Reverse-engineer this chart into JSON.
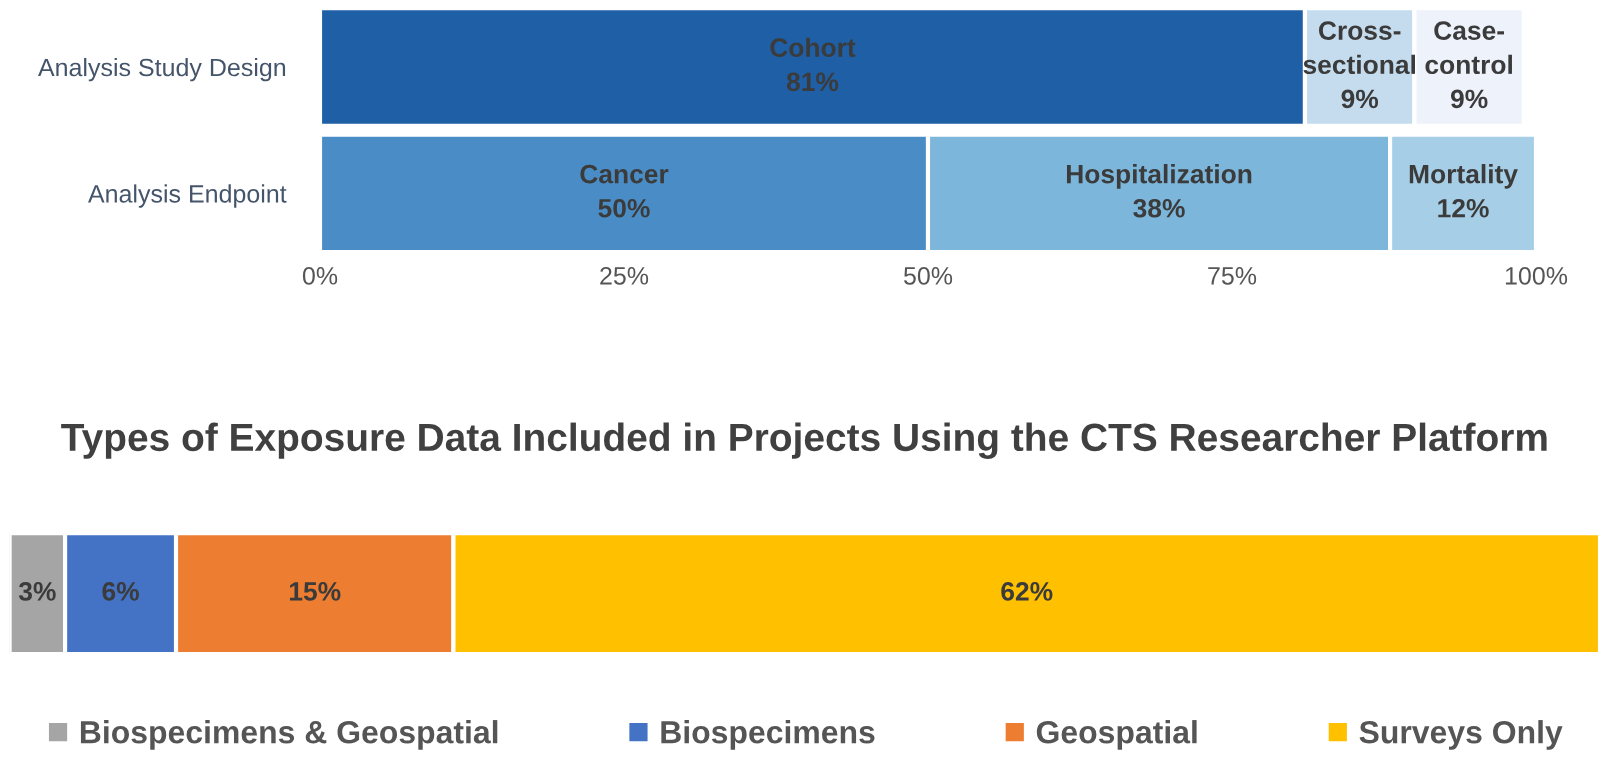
{
  "chart_data": [
    {
      "type": "bar",
      "orientation": "horizontal",
      "stacked": true,
      "categories": [
        "Analysis Study Design",
        "Analysis Endpoint"
      ],
      "xlim": [
        0,
        100
      ],
      "xticks": [
        {
          "value": 0,
          "label": "0%"
        },
        {
          "value": 25,
          "label": "25%"
        },
        {
          "value": 50,
          "label": "50%"
        },
        {
          "value": 75,
          "label": "75%"
        },
        {
          "value": 100,
          "label": "100%"
        }
      ],
      "legend": false,
      "grid": false,
      "series": [
        {
          "colors": [
            "#1f5fa5",
            "#4a8dc6"
          ],
          "values": [
            81,
            50
          ],
          "value_labels": [
            "Cohort\n81%",
            "Cancer\n50%"
          ]
        },
        {
          "colors": [
            "#c5dcee",
            "#7cb6db"
          ],
          "values": [
            9,
            38
          ],
          "value_labels": [
            "Cross-\nsectional\n9%",
            "Hospitalization\n38%"
          ]
        },
        {
          "colors": [
            "#eef2fb",
            "#a6cee6"
          ],
          "values": [
            9,
            12
          ],
          "value_labels": [
            "Case-\ncontrol\n9%",
            "Mortality\n12%"
          ]
        }
      ]
    },
    {
      "type": "bar",
      "orientation": "horizontal",
      "stacked": true,
      "title": "Types of Exposure Data Included in Projects Using the CTS Researcher Platform",
      "categories": [
        null
      ],
      "legend": "bottom",
      "grid": false,
      "tick_labels": false,
      "series": [
        {
          "name": "Biospecimens & Geospatial",
          "color": "#a5a5a5",
          "values": [
            3
          ],
          "value_labels": [
            "3%"
          ]
        },
        {
          "name": "Biospecimens",
          "color": "#4472c4",
          "values": [
            6
          ],
          "value_labels": [
            "6%"
          ]
        },
        {
          "name": "Geospatial",
          "color": "#ed7d31",
          "values": [
            15
          ],
          "value_labels": [
            "15%"
          ]
        },
        {
          "name": "Surveys Only",
          "color": "#ffc000",
          "values": [
            62
          ],
          "value_labels": [
            "62%"
          ]
        }
      ]
    }
  ]
}
